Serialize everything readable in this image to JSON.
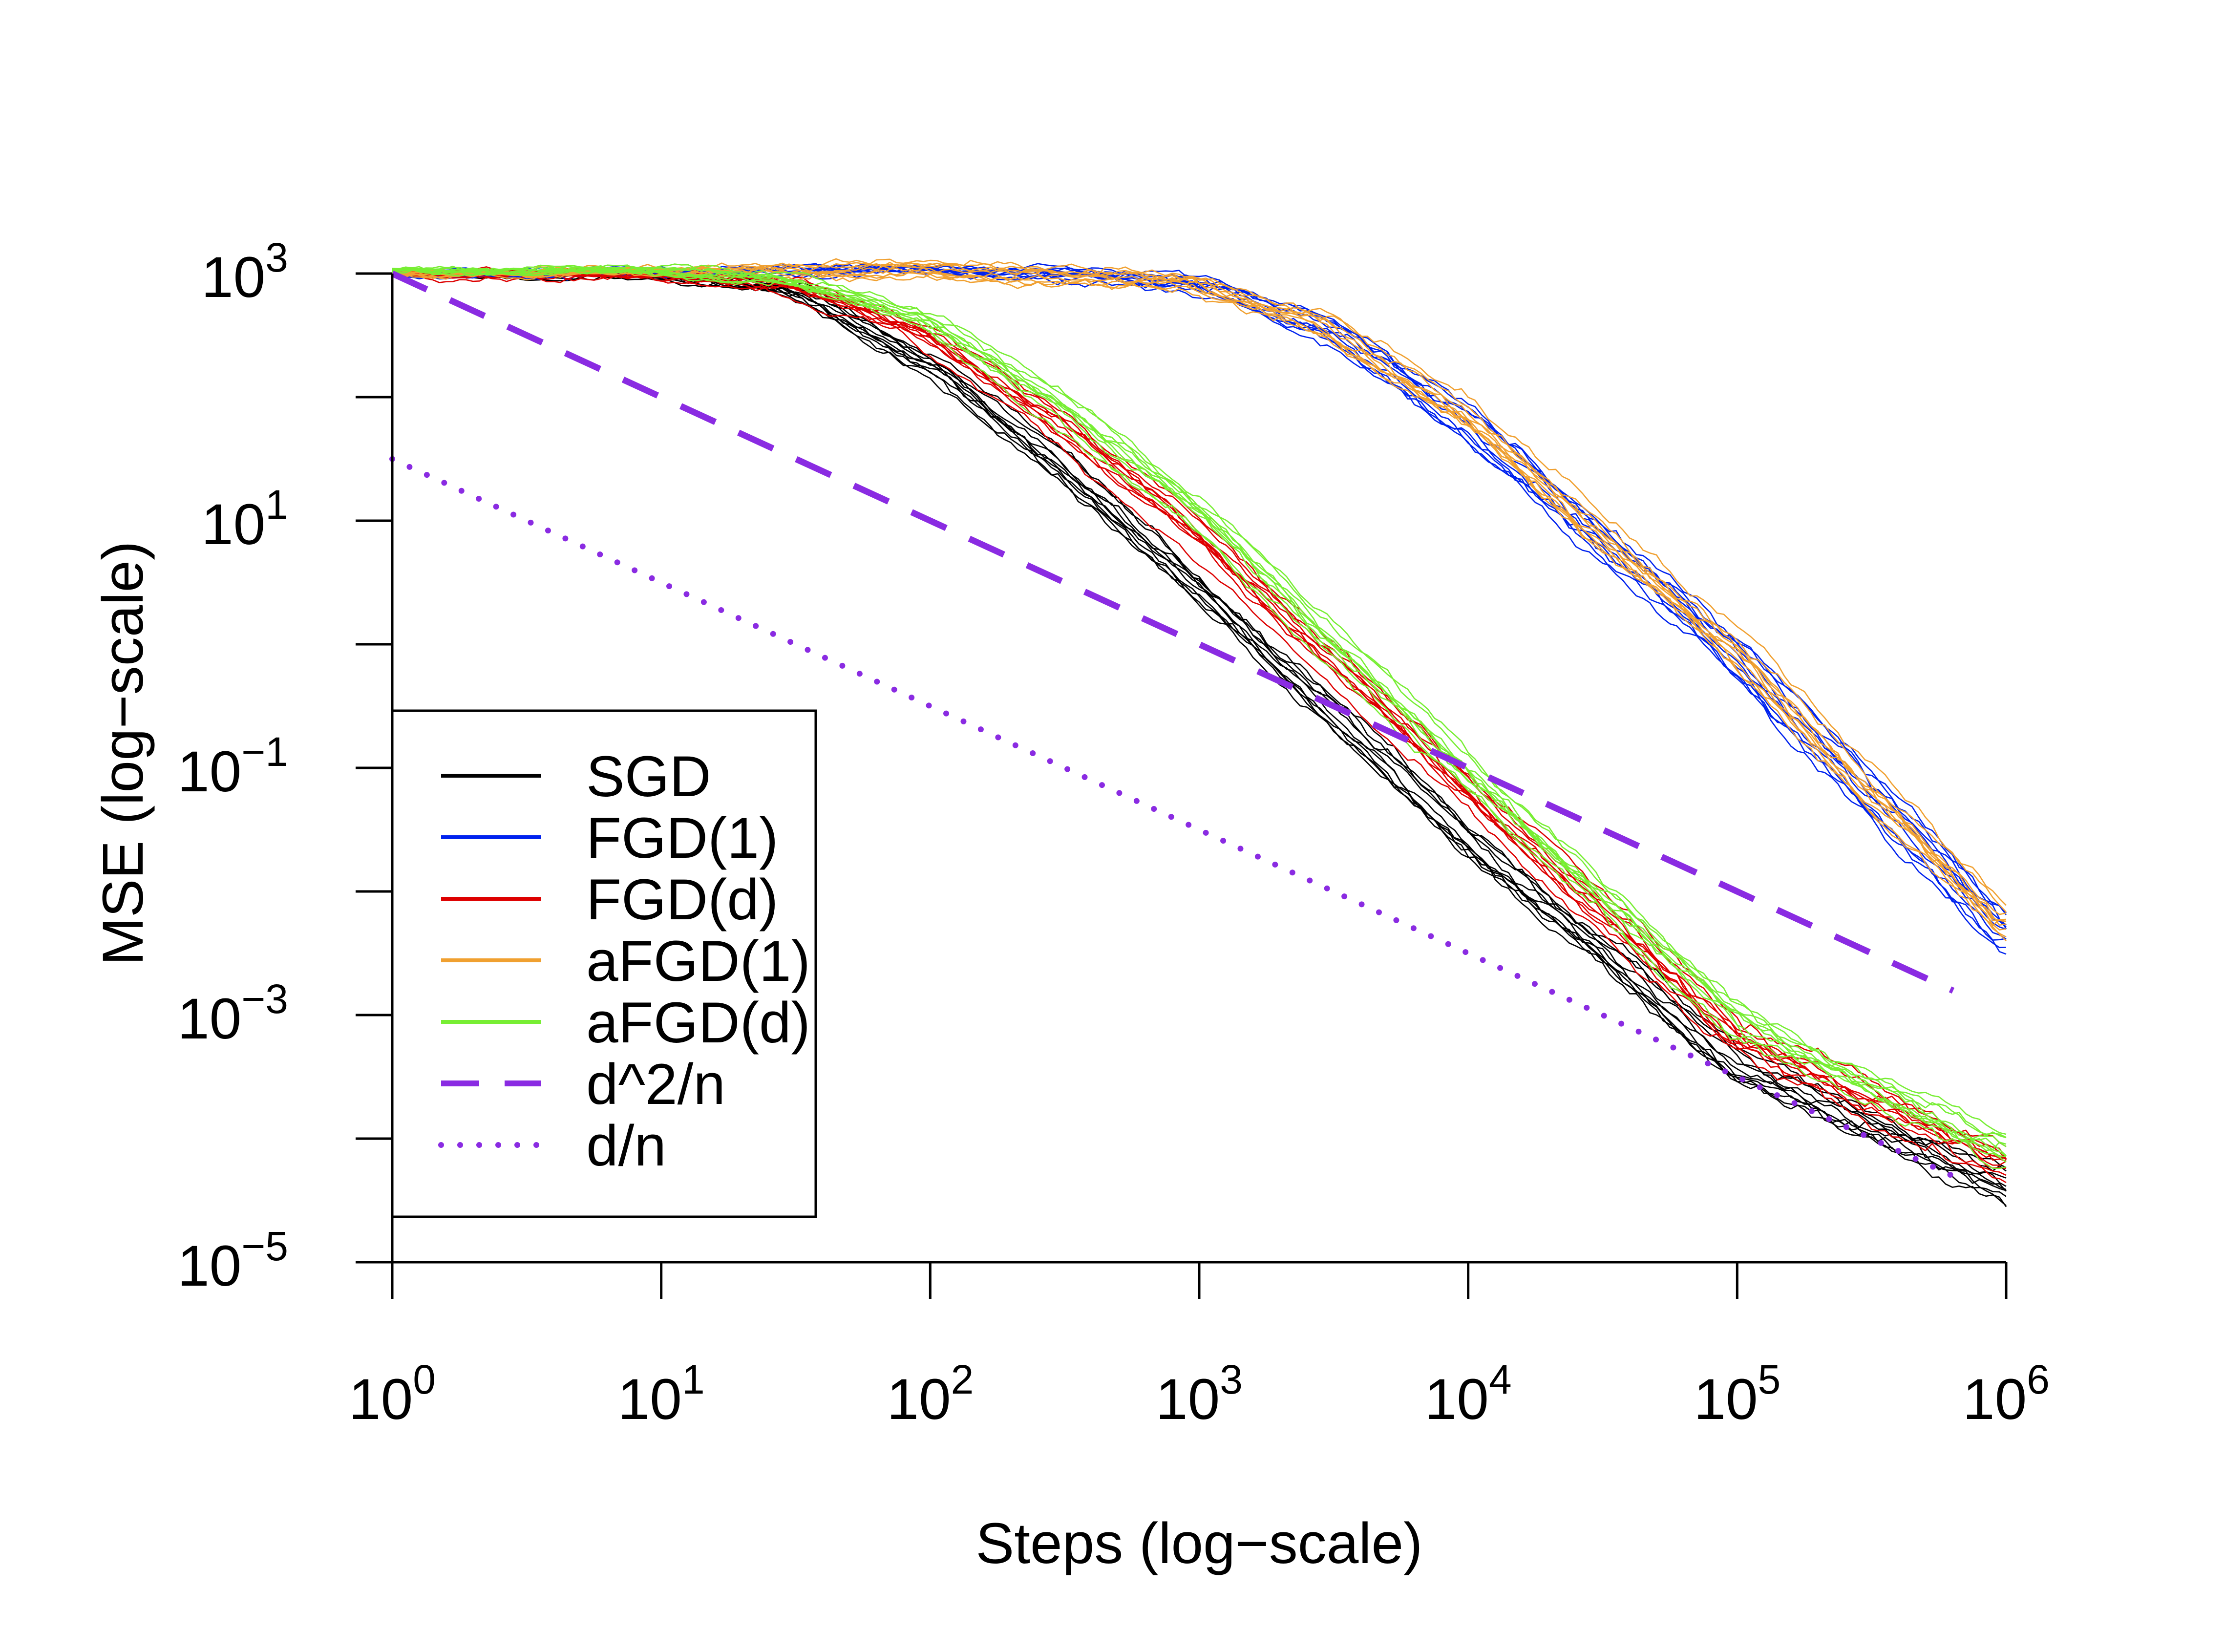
{
  "chart_data": {
    "type": "line",
    "title": "",
    "xlabel": "Steps (log−scale)",
    "ylabel": "MSE (log−scale)",
    "xscale": "log10",
    "yscale": "log10",
    "xlim": [
      1,
      1000000
    ],
    "ylim": [
      1e-05,
      1000
    ],
    "x_ticks": [
      {
        "base": "10",
        "exp": "0",
        "value": 1
      },
      {
        "base": "10",
        "exp": "1",
        "value": 10
      },
      {
        "base": "10",
        "exp": "2",
        "value": 100
      },
      {
        "base": "10",
        "exp": "3",
        "value": 1000
      },
      {
        "base": "10",
        "exp": "4",
        "value": 10000
      },
      {
        "base": "10",
        "exp": "5",
        "value": 100000
      },
      {
        "base": "10",
        "exp": "6",
        "value": 1000000
      }
    ],
    "y_ticks": [
      {
        "base": "10",
        "exp": "3",
        "value": 1000
      },
      {
        "base": "10",
        "exp": "1",
        "value": 10
      },
      {
        "base": "10",
        "exp": "−1",
        "value": 0.1
      },
      {
        "base": "10",
        "exp": "−3",
        "value": 0.001
      },
      {
        "base": "10",
        "exp": "−5",
        "value": 1e-05
      }
    ],
    "y_minor_ticks": [
      100,
      1,
      0.01,
      0.0001
    ],
    "grid": false,
    "legend_position": "bottom-left",
    "runs_per_series": 10,
    "series": [
      {
        "name": "SGD",
        "color": "#000000",
        "style": "solid",
        "runs": 10,
        "x": [
          1,
          10,
          30,
          100,
          300,
          1000,
          10000,
          100000,
          1000000
        ],
        "y": [
          1000,
          950,
          700,
          170,
          25,
          2.5,
          0.022,
          0.00035,
          3.5e-05
        ]
      },
      {
        "name": "FGD(1)",
        "color": "#0022ee",
        "style": "solid",
        "runs": 10,
        "x": [
          1,
          100,
          1000,
          3000,
          10000,
          100000,
          1000000
        ],
        "y": [
          1000,
          1080,
          850,
          350,
          60,
          0.75,
          0.0045
        ]
      },
      {
        "name": "FGD(d)",
        "color": "#dd0000",
        "style": "solid",
        "runs": 10,
        "x": [
          1,
          10,
          30,
          100,
          300,
          1000,
          10000,
          100000,
          1000000
        ],
        "y": [
          1000,
          1000,
          850,
          330,
          65,
          8,
          0.07,
          0.0007,
          6e-05
        ]
      },
      {
        "name": "aFGD(1)",
        "color": "#f0a030",
        "style": "solid",
        "runs": 10,
        "x": [
          1,
          100,
          1000,
          3000,
          10000,
          100000,
          1000000
        ],
        "y": [
          1000,
          1100,
          900,
          420,
          80,
          1.0,
          0.006
        ]
      },
      {
        "name": "aFGD(d)",
        "color": "#77ee33",
        "style": "solid",
        "runs": 10,
        "x": [
          1,
          10,
          30,
          100,
          300,
          1000,
          10000,
          100000,
          1000000
        ],
        "y": [
          1050,
          1050,
          900,
          400,
          85,
          11,
          0.09,
          0.0009,
          8e-05
        ]
      },
      {
        "name": "d^2/n",
        "color": "#8a2be2",
        "style": "dashed",
        "x": [
          1,
          1000000
        ],
        "y": [
          1000,
          0.001
        ]
      },
      {
        "name": "d/n",
        "color": "#8a2be2",
        "style": "dotted",
        "x": [
          1,
          1000000
        ],
        "y": [
          31.6,
          3.16e-05
        ]
      }
    ]
  }
}
